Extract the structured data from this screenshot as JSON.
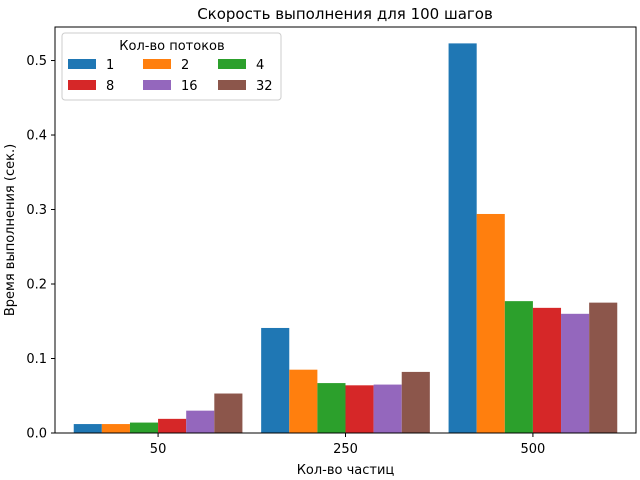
{
  "chart_data": {
    "type": "bar",
    "title": "Скорость выполнения для 100 шагов",
    "xlabel": "Кол-во частиц",
    "ylabel": "Время выполнения (сек.)",
    "categories": [
      "50",
      "250",
      "500"
    ],
    "ylim": [
      0,
      0.545
    ],
    "yticks": [
      0.0,
      0.1,
      0.2,
      0.3,
      0.4,
      0.5
    ],
    "ytick_labels": [
      "0.0",
      "0.1",
      "0.2",
      "0.3",
      "0.4",
      "0.5"
    ],
    "grid": false,
    "legend": {
      "title": "Кол-во потоков",
      "placement": "top-left",
      "ncol": 3
    },
    "series": [
      {
        "name": "1",
        "color": "#1f77b4",
        "values": [
          0.012,
          0.141,
          0.523
        ]
      },
      {
        "name": "2",
        "color": "#ff7f0e",
        "values": [
          0.012,
          0.085,
          0.294
        ]
      },
      {
        "name": "4",
        "color": "#2ca02c",
        "values": [
          0.014,
          0.067,
          0.177
        ]
      },
      {
        "name": "8",
        "color": "#d62728",
        "values": [
          0.019,
          0.064,
          0.168
        ]
      },
      {
        "name": "16",
        "color": "#9467bd",
        "values": [
          0.03,
          0.065,
          0.16
        ]
      },
      {
        "name": "32",
        "color": "#8c564b",
        "values": [
          0.053,
          0.082,
          0.175
        ]
      }
    ]
  }
}
